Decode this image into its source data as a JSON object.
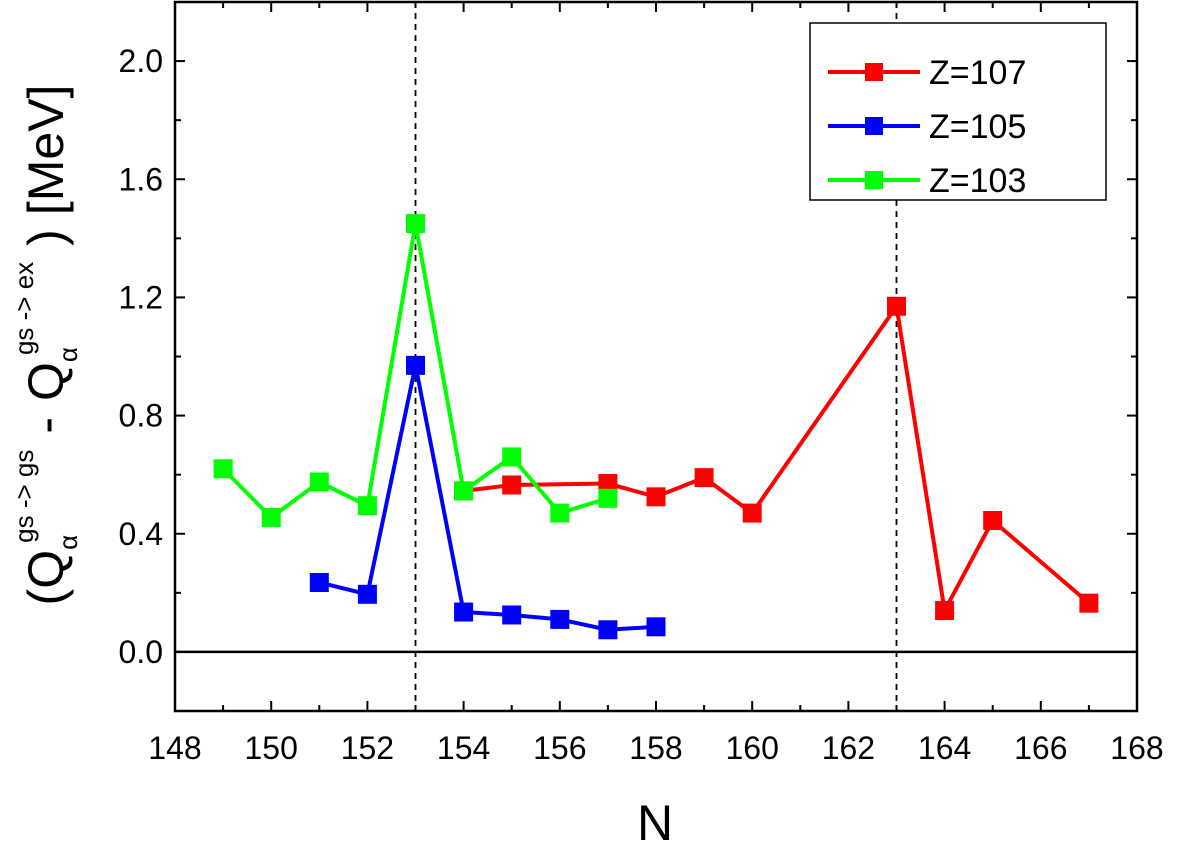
{
  "chart_data": {
    "type": "line",
    "xlabel": "N",
    "ylabel": {
      "open": "(",
      "q1": "Q",
      "q1_sub": "α",
      "q1_sup": "gs -> gs",
      "minus": "-",
      "q2": "Q",
      "q2_sub": "α",
      "q2_sup": "gs -> ex",
      "close": ")",
      "unit": "[MeV]"
    },
    "xlim": [
      148,
      168
    ],
    "ylim": [
      -0.2,
      2.2
    ],
    "xticks": [
      148,
      150,
      152,
      154,
      156,
      158,
      160,
      162,
      164,
      166,
      168
    ],
    "yticks": [
      0.0,
      0.4,
      0.8,
      1.2,
      1.6,
      2.0
    ],
    "ytick_labels": [
      "0.0",
      "0.4",
      "0.8",
      "1.2",
      "1.6",
      "2.0"
    ],
    "reference_lines": {
      "horizontal_y": 0.0,
      "vertical_dashed_x": [
        153,
        163
      ]
    },
    "legend_position": "top-right",
    "series": [
      {
        "name": "Z=107",
        "color": "#ff0000",
        "marker": "square",
        "points": [
          {
            "x": 154,
            "y": 0.545
          },
          {
            "x": 155,
            "y": 0.565
          },
          {
            "x": 157,
            "y": 0.57
          },
          {
            "x": 158,
            "y": 0.525
          },
          {
            "x": 159,
            "y": 0.59
          },
          {
            "x": 160,
            "y": 0.47
          },
          {
            "x": 163,
            "y": 1.17
          },
          {
            "x": 164,
            "y": 0.14
          },
          {
            "x": 165,
            "y": 0.445
          },
          {
            "x": 167,
            "y": 0.165
          }
        ]
      },
      {
        "name": "Z=105",
        "color": "#0000ff",
        "marker": "square",
        "points": [
          {
            "x": 151,
            "y": 0.235
          },
          {
            "x": 152,
            "y": 0.195
          },
          {
            "x": 153,
            "y": 0.97
          },
          {
            "x": 154,
            "y": 0.135
          },
          {
            "x": 155,
            "y": 0.125
          },
          {
            "x": 156,
            "y": 0.11
          },
          {
            "x": 157,
            "y": 0.075
          },
          {
            "x": 158,
            "y": 0.085
          }
        ]
      },
      {
        "name": "Z=103",
        "color": "#00ff00",
        "marker": "square",
        "points": [
          {
            "x": 149,
            "y": 0.62
          },
          {
            "x": 150,
            "y": 0.455
          },
          {
            "x": 151,
            "y": 0.575
          },
          {
            "x": 152,
            "y": 0.495
          },
          {
            "x": 153,
            "y": 1.45
          },
          {
            "x": 154,
            "y": 0.545
          },
          {
            "x": 155,
            "y": 0.66
          },
          {
            "x": 156,
            "y": 0.47
          },
          {
            "x": 157,
            "y": 0.52
          }
        ]
      }
    ]
  }
}
